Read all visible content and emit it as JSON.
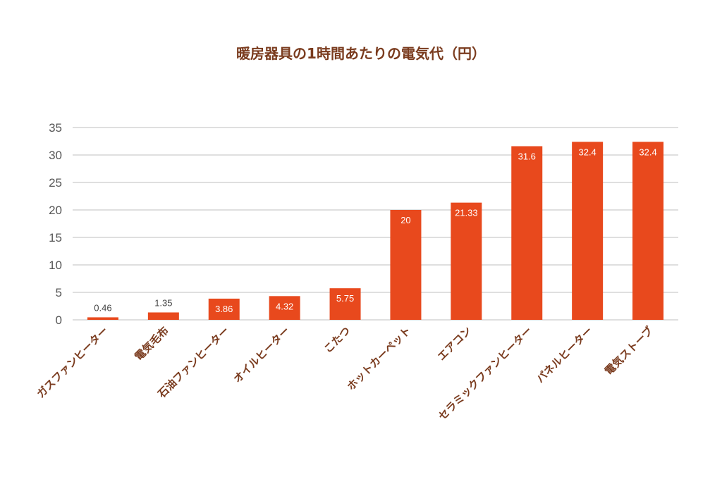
{
  "chart_data": {
    "type": "bar",
    "title": "暖房器具の1時間あたりの電気代（円）",
    "categories": [
      "ガスファンヒーター",
      "電気毛布",
      "石油ファンヒーター",
      "オイルヒーター",
      "こたつ",
      "ホットカーペット",
      "エアコン",
      "セラミックファンヒーター",
      "パネルヒーター",
      "電気ストーブ"
    ],
    "values": [
      0.46,
      1.35,
      3.86,
      4.32,
      5.75,
      20,
      21.33,
      31.6,
      32.4,
      32.4
    ],
    "data_labels": [
      "0.46",
      "1.35",
      "3.86",
      "4.32",
      "5.75",
      "20",
      "21.33",
      "31.6",
      "32.4",
      "32.4"
    ],
    "yticks": [
      "0",
      "5",
      "10",
      "15",
      "20",
      "25",
      "30",
      "35"
    ],
    "ylim": [
      0,
      35
    ],
    "grid": true,
    "xlabel": "",
    "ylabel": "",
    "colors": {
      "bar": "#e8491d",
      "title": "#7a3b1e",
      "category_label": "#7a3b1e",
      "tick": "#555555",
      "grid": "#bfbfbf",
      "label_inside": "#ffffff",
      "label_outside": "#444444"
    }
  }
}
